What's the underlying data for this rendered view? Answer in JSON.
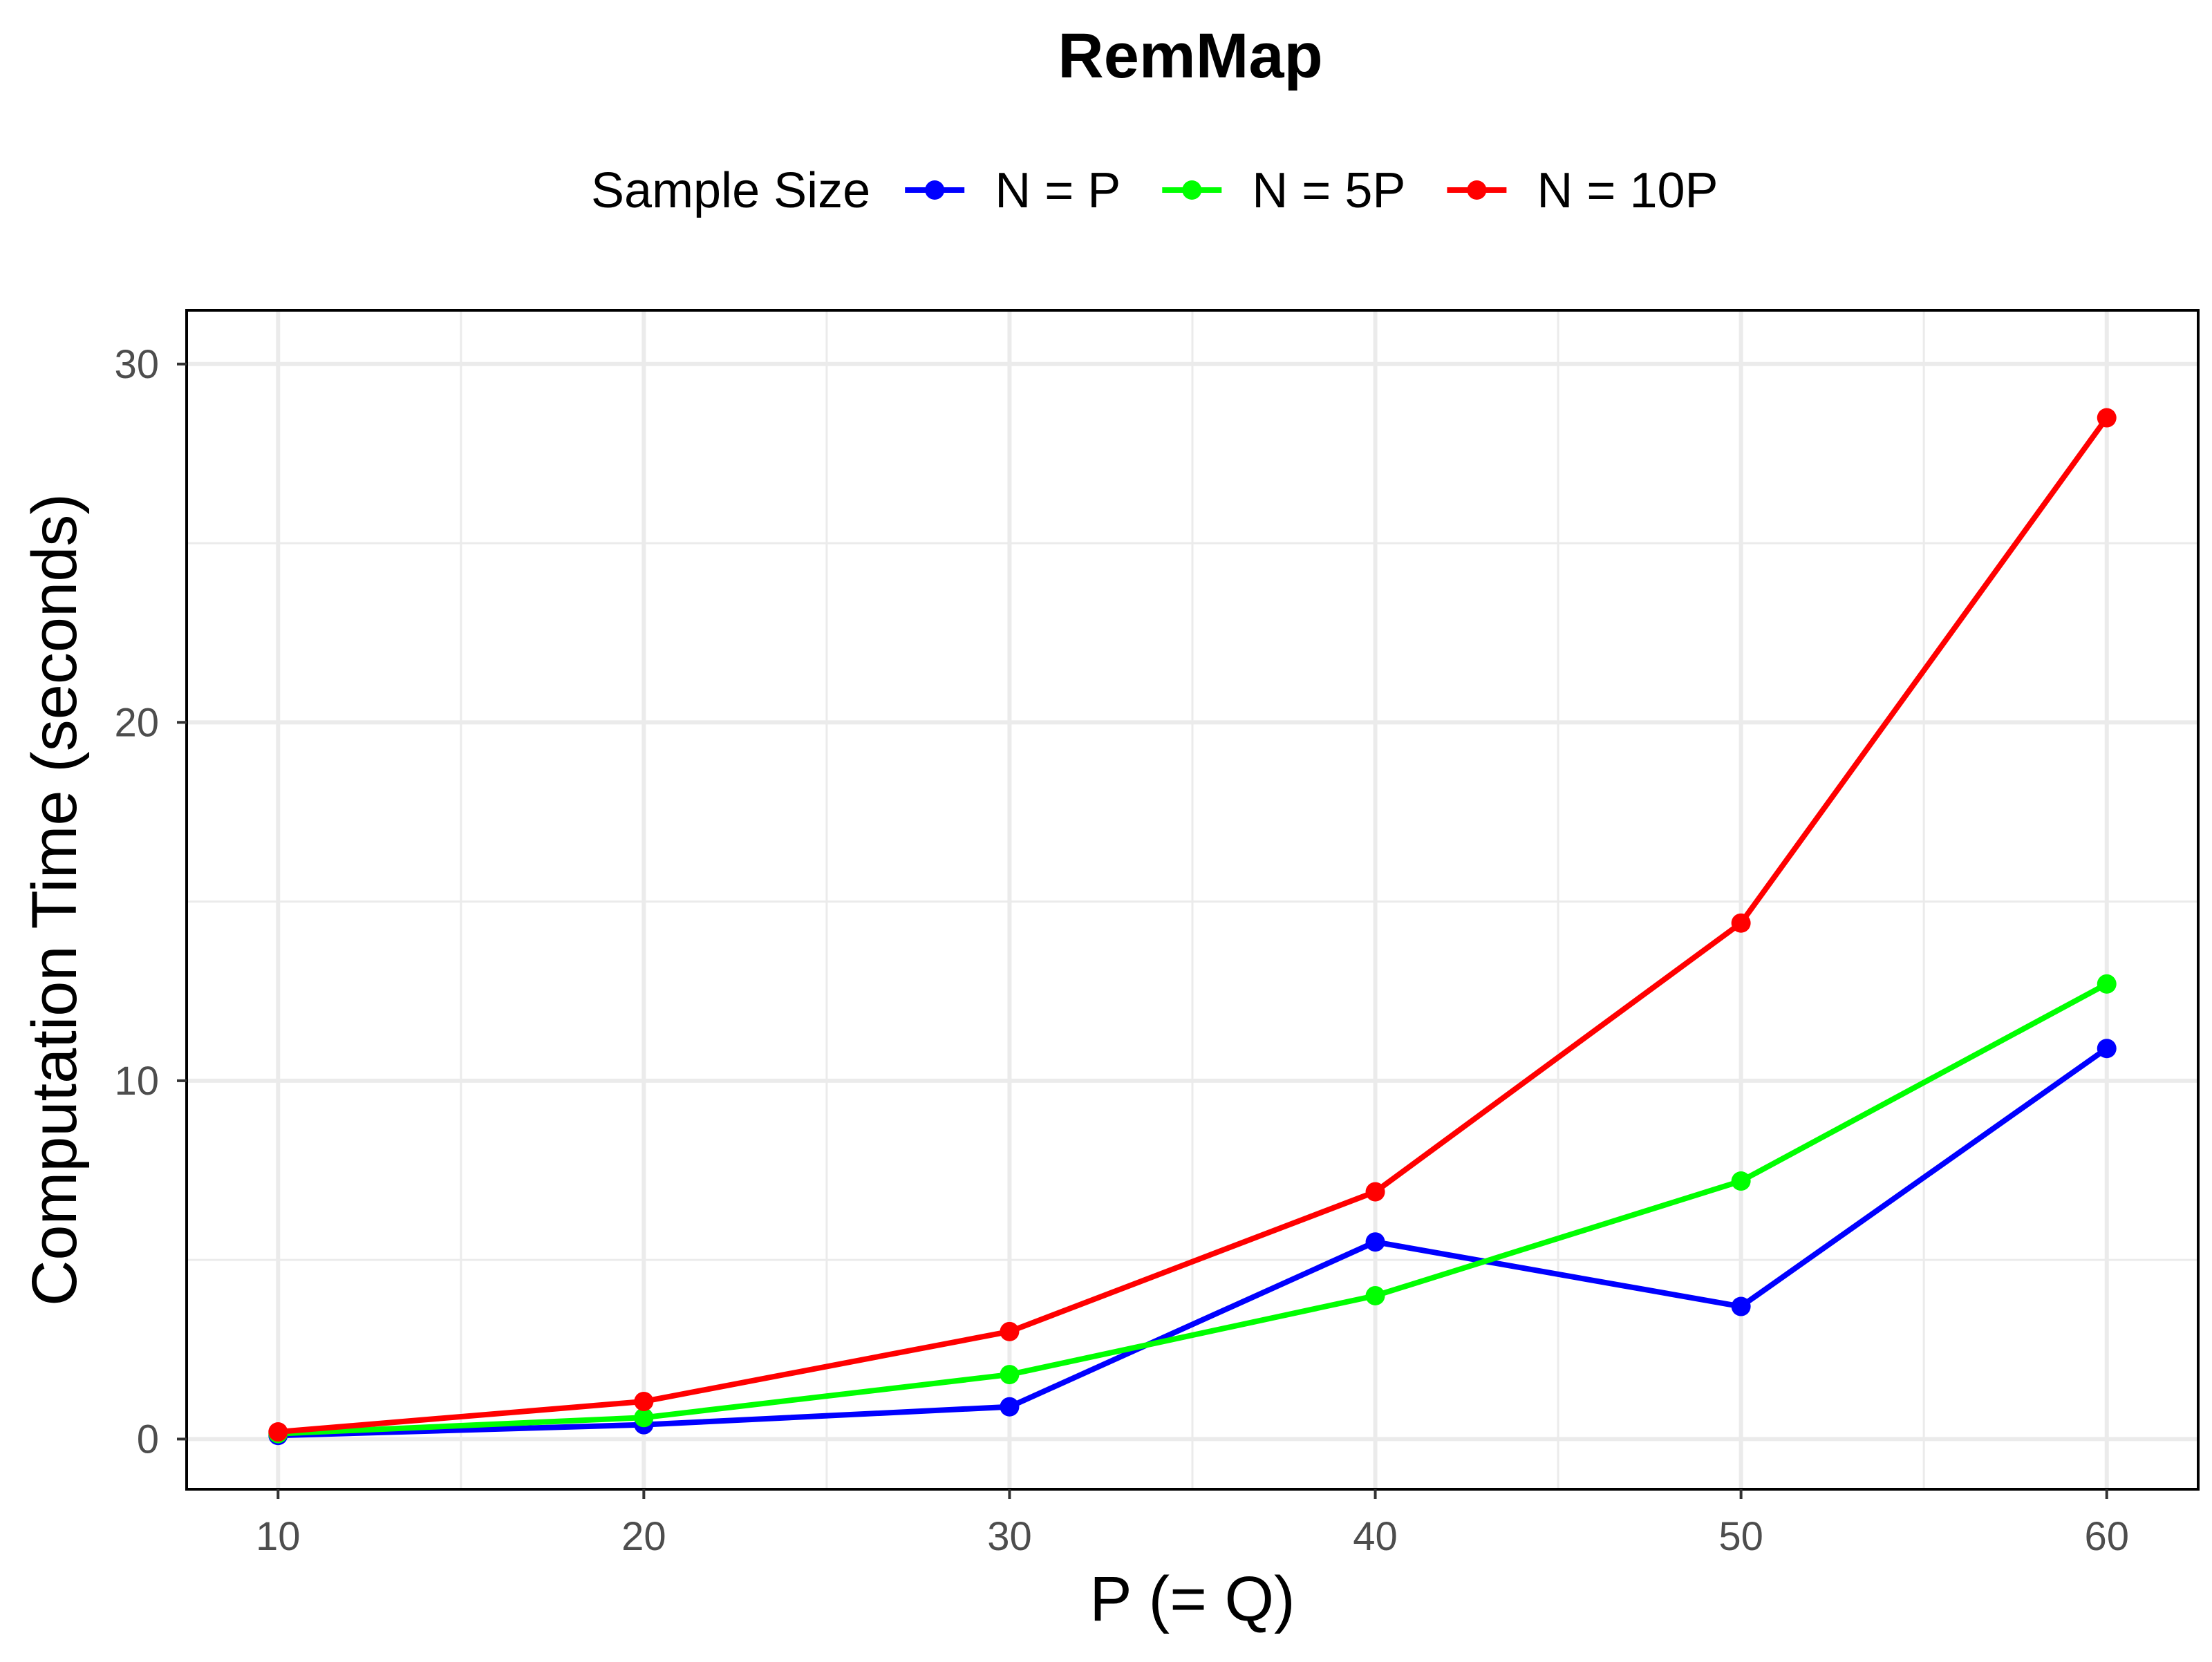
{
  "chart_data": {
    "type": "line",
    "title": "RemMap",
    "xlabel": "P (= Q)",
    "ylabel": "Computation Time (seconds)",
    "legend": {
      "title": "Sample Size",
      "placement": "top"
    },
    "x": [
      10,
      20,
      30,
      40,
      50,
      60
    ],
    "x_ticks": [
      10,
      20,
      30,
      40,
      50,
      60
    ],
    "y_ticks": [
      0,
      10,
      20,
      30
    ],
    "xlim": [
      7.5,
      62.5
    ],
    "ylim": [
      -1.4,
      31.5
    ],
    "grid": true,
    "series": [
      {
        "name": "N = P",
        "color": "#0000FF",
        "values": [
          0.1,
          0.4,
          0.9,
          5.5,
          3.7,
          10.9
        ]
      },
      {
        "name": "N = 5P",
        "color": "#00FF00",
        "values": [
          0.15,
          0.6,
          1.8,
          4.0,
          7.2,
          12.7
        ]
      },
      {
        "name": "N = 10P",
        "color": "#FF0000",
        "values": [
          0.2,
          1.05,
          3.0,
          6.9,
          14.4,
          28.5
        ]
      }
    ]
  }
}
